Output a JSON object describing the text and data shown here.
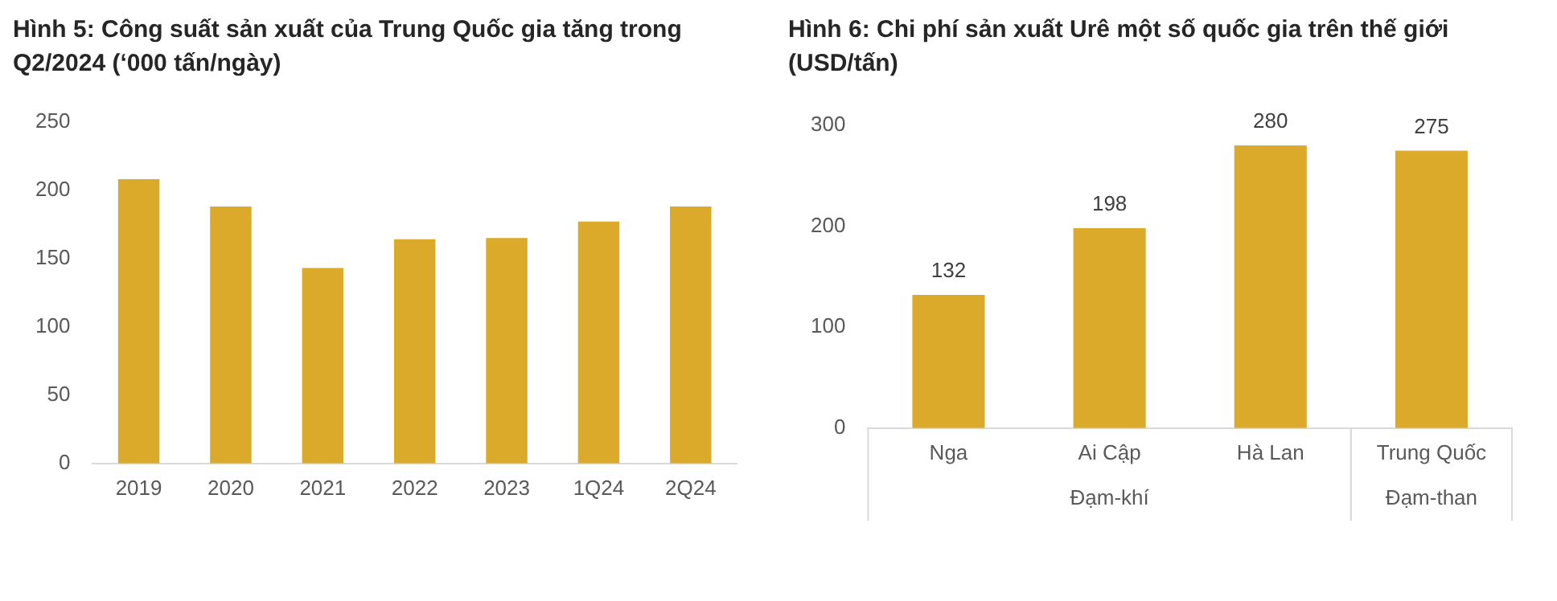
{
  "chart_data": [
    {
      "type": "bar",
      "title": "Hình 5: Công suất sản xuất của Trung Quốc gia tăng trong Q2/2024 (‘000 tấn/ngày)",
      "categories": [
        "2019",
        "2020",
        "2021",
        "2022",
        "2023",
        "1Q24",
        "2Q24"
      ],
      "values": [
        208,
        188,
        143,
        164,
        165,
        177,
        188
      ],
      "color": "#dcaa2a",
      "ylim": [
        0,
        250
      ],
      "yticks": [
        0,
        50,
        100,
        150,
        200,
        250
      ],
      "grid": false
    },
    {
      "type": "bar",
      "title": "Hình 6: Chi phí sản xuất Urê một số quốc gia trên thế giới (USD/tấn)",
      "categories": [
        "Nga",
        "Ai Cập",
        "Hà Lan",
        "Trung Quốc"
      ],
      "values": [
        132,
        198,
        280,
        275
      ],
      "color": "#dcaa2a",
      "ylim": [
        0,
        300
      ],
      "yticks": [
        0,
        100,
        200,
        300
      ],
      "grid": false,
      "data_labels": true,
      "annotations": [
        "Đạm-khí",
        "Đạm-than"
      ]
    }
  ]
}
